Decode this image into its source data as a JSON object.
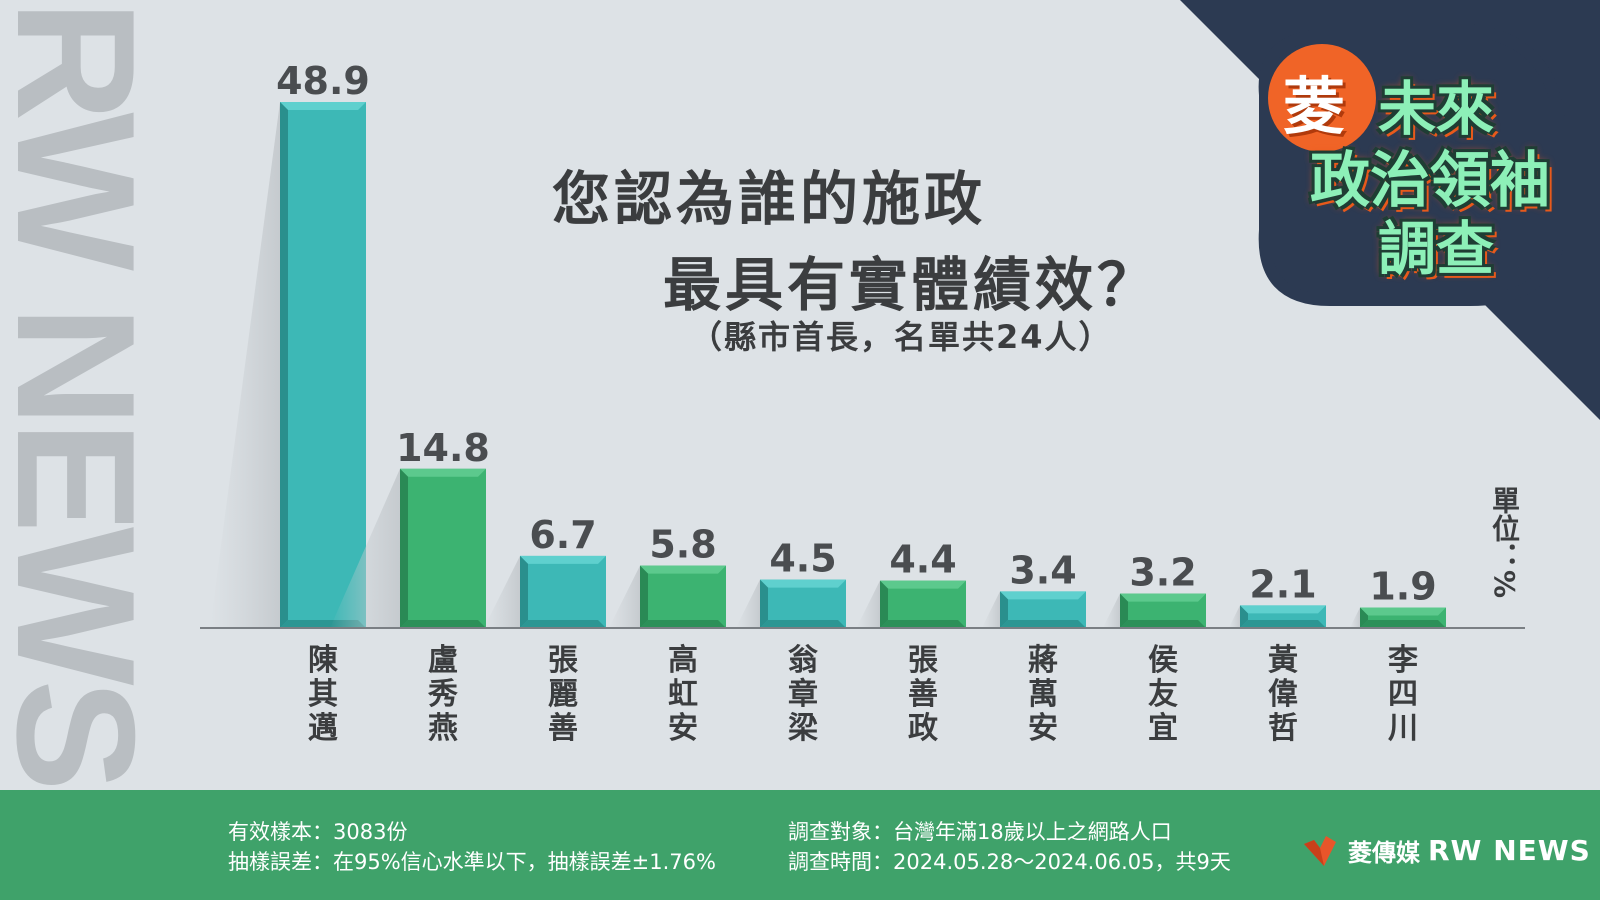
{
  "title_line1": "您認為誰的施政",
  "title_line2": "最具有實體績效？",
  "subtitle": "（縣市首長，名單共24人）",
  "unit_label": "單位：%",
  "watermark": "RW NEWS",
  "badge": {
    "circle_char": "菱",
    "line1": "未來",
    "line2": "政治領袖",
    "line3": "調查"
  },
  "footer": {
    "sample": "有效樣本：3083份",
    "error": "抽樣誤差：在95%信心水準以下，抽樣誤差±1.76%",
    "target": "調查對象：台灣年滿18歲以上之網路人口",
    "period": "調查時間：2024.05.28～2024.06.05，共9天",
    "brand_zh": "菱傳媒",
    "brand_en": "RW NEWS"
  },
  "colors": {
    "teal": "#3db8b6",
    "green": "#3cb371",
    "footer_green": "#3fa26a",
    "navy": "#2c3a52",
    "orange": "#f06427",
    "background": "#dde2e6"
  },
  "chart_data": {
    "type": "bar",
    "categories": [
      "陳其邁",
      "盧秀燕",
      "張麗善",
      "高虹安",
      "翁章梁",
      "張善政",
      "蔣萬安",
      "侯友宜",
      "黃偉哲",
      "李四川"
    ],
    "values": [
      48.9,
      14.8,
      6.7,
      5.8,
      4.5,
      4.4,
      3.4,
      3.2,
      2.1,
      1.9
    ],
    "ylim": [
      0,
      48.9
    ],
    "grid": false,
    "bar_colors_alternate": [
      "teal",
      "green"
    ]
  }
}
